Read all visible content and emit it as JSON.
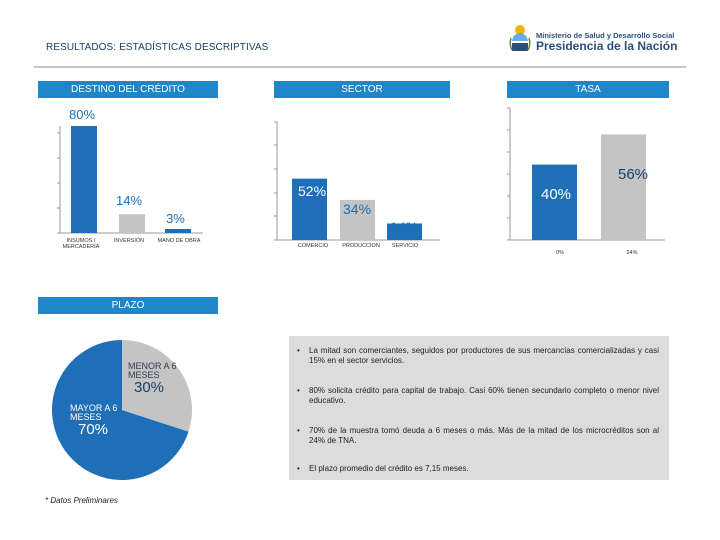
{
  "header": {
    "title": "RESULTADOS: ESTADÍSTICAS DESCRIPTIVAS",
    "logo_line1": "Ministerio de Salud y Desarrollo Social",
    "logo_line2": "Presidencia de la Nación"
  },
  "destino": {
    "header": "DESTINO DEL CRÉDITO",
    "chart_data": {
      "type": "bar",
      "title": "DESTINO DEL CRÉDITO",
      "categories": [
        "INSUMOS / MERCADERÍA",
        "INVERSIÓN",
        "MANO DE OBRA"
      ],
      "values": [
        80,
        14,
        3
      ],
      "labels": [
        "80%",
        "14%",
        "3%"
      ],
      "unit": "%",
      "ylim": [
        0,
        80
      ]
    }
  },
  "sector": {
    "header": "SECTOR",
    "chart_data": {
      "type": "bar",
      "title": "SECTOR",
      "categories": [
        "COMERCIO",
        "PRODUCCION",
        "SERVICIO"
      ],
      "values": [
        52,
        34,
        14
      ],
      "labels": [
        "52%",
        "34%",
        "14%"
      ],
      "unit": "%",
      "ylim": [
        0,
        100
      ]
    }
  },
  "tasa": {
    "header": "TASA",
    "chart_data": {
      "type": "bar",
      "title": "TASA",
      "categories": [
        "0%",
        "24%"
      ],
      "values": [
        40,
        56
      ],
      "labels": [
        "40%",
        "56%"
      ],
      "unit": "%",
      "ylim": [
        0,
        70
      ]
    }
  },
  "plazo": {
    "header": "PLAZO",
    "chart_data": {
      "type": "pie",
      "title": "PLAZO",
      "slices": [
        {
          "name": "MAYOR A 6 MESES",
          "value": 70,
          "label": "70%",
          "color": "#1f6fb8"
        },
        {
          "name": "MENOR A 6 MESES",
          "value": 30,
          "label": "30%",
          "color": "#c4c4c4"
        }
      ]
    }
  },
  "bullets": [
    "La mitad son comerciantes, seguidos por productores de sus mercancías comercializadas y casi 15% en el sector servicios.",
    "80% solicita crédito para capital de trabajo. Casi 60% tienen secundario completo o menor nivel educativo.",
    "70% de la muestra tomó deuda a 6 meses o más. Más de la mitad de los microcréditos son al 24% de TNA.",
    "El plazo promedio del crédito es 7,15 meses."
  ],
  "footnote": "* Datos Preliminares",
  "colors": {
    "blue": "#1f6fb8",
    "header_blue": "#1f86c8",
    "gray": "#c4c4c4",
    "label_blue": "#1a6fb2"
  }
}
